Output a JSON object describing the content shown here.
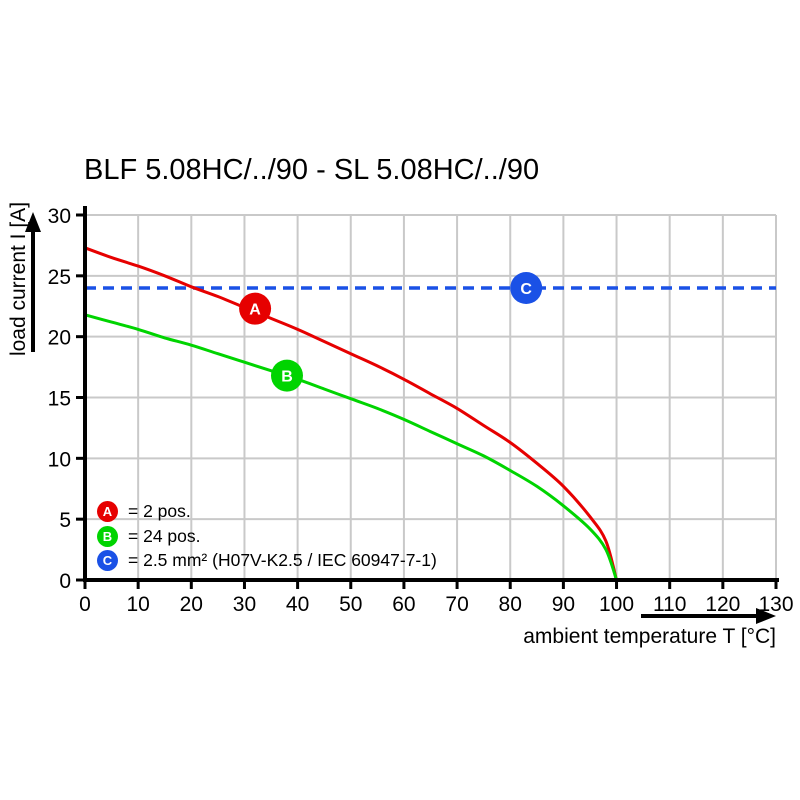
{
  "title": "BLF 5.08HC/../90 - SL 5.08HC/../90",
  "colors": {
    "red": "#e60000",
    "green": "#00d400",
    "blue": "#1a51e6",
    "grid": "#c9c9c9",
    "axis": "#000000",
    "background": "#ffffff",
    "marker_letter": "#ffffff"
  },
  "legend": {
    "items": [
      {
        "letter": "A",
        "color": "#e60000",
        "text": "= 2 pos."
      },
      {
        "letter": "B",
        "color": "#00d400",
        "text": "= 24 pos."
      },
      {
        "letter": "C",
        "color": "#1a51e6",
        "text": "= 2.5 mm² (H07V-K2.5 / IEC 60947-7-1)"
      }
    ]
  },
  "chart_data": {
    "type": "line",
    "title": "BLF 5.08HC/../90 - SL 5.08HC/../90",
    "xlabel": "ambient temperature T [°C]",
    "ylabel": "load current I [A]",
    "xlim": [
      0,
      130
    ],
    "ylim": [
      0,
      30
    ],
    "x_ticks": [
      0,
      10,
      20,
      30,
      40,
      50,
      60,
      70,
      80,
      90,
      100,
      110,
      120,
      130
    ],
    "y_ticks": [
      0,
      5,
      10,
      15,
      20,
      25,
      30
    ],
    "grid": true,
    "legend_position": "lower-left",
    "series": [
      {
        "name": "A",
        "label": "2 pos.",
        "color": "#e60000",
        "style": "solid",
        "x": [
          0,
          5,
          10,
          15,
          20,
          25,
          30,
          35,
          40,
          45,
          50,
          55,
          60,
          65,
          70,
          75,
          80,
          85,
          90,
          95,
          98,
          100
        ],
        "y": [
          27.3,
          26.5,
          25.8,
          25.0,
          24.1,
          23.3,
          22.4,
          21.5,
          20.6,
          19.6,
          18.6,
          17.6,
          16.5,
          15.3,
          14.1,
          12.7,
          11.3,
          9.6,
          7.7,
          5.2,
          3.2,
          0
        ]
      },
      {
        "name": "B",
        "label": "24 pos.",
        "color": "#00d400",
        "style": "solid",
        "x": [
          0,
          5,
          10,
          15,
          20,
          25,
          30,
          35,
          40,
          45,
          50,
          55,
          60,
          65,
          70,
          75,
          80,
          85,
          90,
          95,
          98,
          100
        ],
        "y": [
          21.8,
          21.2,
          20.6,
          19.9,
          19.3,
          18.6,
          17.9,
          17.2,
          16.5,
          15.7,
          14.9,
          14.1,
          13.2,
          12.2,
          11.2,
          10.2,
          9.0,
          7.7,
          6.1,
          4.2,
          2.5,
          0
        ]
      },
      {
        "name": "C",
        "label": "2.5 mm² (H07V-K2.5 / IEC 60947-7-1)",
        "color": "#1a51e6",
        "style": "dashed",
        "x": [
          0,
          130
        ],
        "y": [
          24,
          24
        ]
      }
    ],
    "markers": [
      {
        "letter": "A",
        "color": "#e60000",
        "x": 32,
        "y": 22.3
      },
      {
        "letter": "B",
        "color": "#00d400",
        "x": 38,
        "y": 16.8
      },
      {
        "letter": "C",
        "color": "#1a51e6",
        "x": 83,
        "y": 24
      }
    ]
  }
}
